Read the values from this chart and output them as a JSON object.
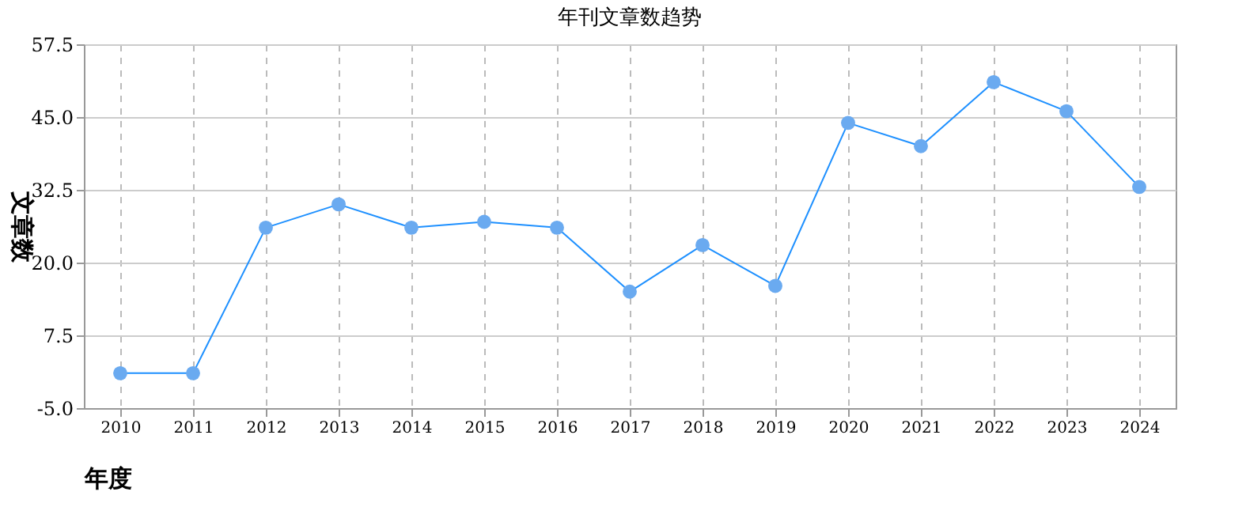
{
  "chart_data": {
    "type": "line",
    "title": "年刊文章数趋势",
    "xlabel": "年度",
    "ylabel": "文章数",
    "categories": [
      "2010",
      "2011",
      "2012",
      "2013",
      "2014",
      "2015",
      "2016",
      "2017",
      "2018",
      "2019",
      "2020",
      "2021",
      "2022",
      "2023",
      "2024"
    ],
    "series": [
      {
        "color": "#1e90ff",
        "values": [
          1,
          1,
          26,
          30,
          26,
          27,
          26,
          15,
          23,
          16,
          44,
          40,
          51,
          46,
          33
        ]
      }
    ],
    "ylim": [
      -5,
      57.5
    ],
    "yticks": [
      {
        "value": -5,
        "label": "-5.0"
      },
      7.5,
      {
        "value": 20,
        "label": "20.0"
      },
      32.5,
      {
        "value": 45,
        "label": "45.0"
      },
      57.5
    ],
    "grid": true,
    "marker": "circle",
    "line_style": "solid"
  }
}
